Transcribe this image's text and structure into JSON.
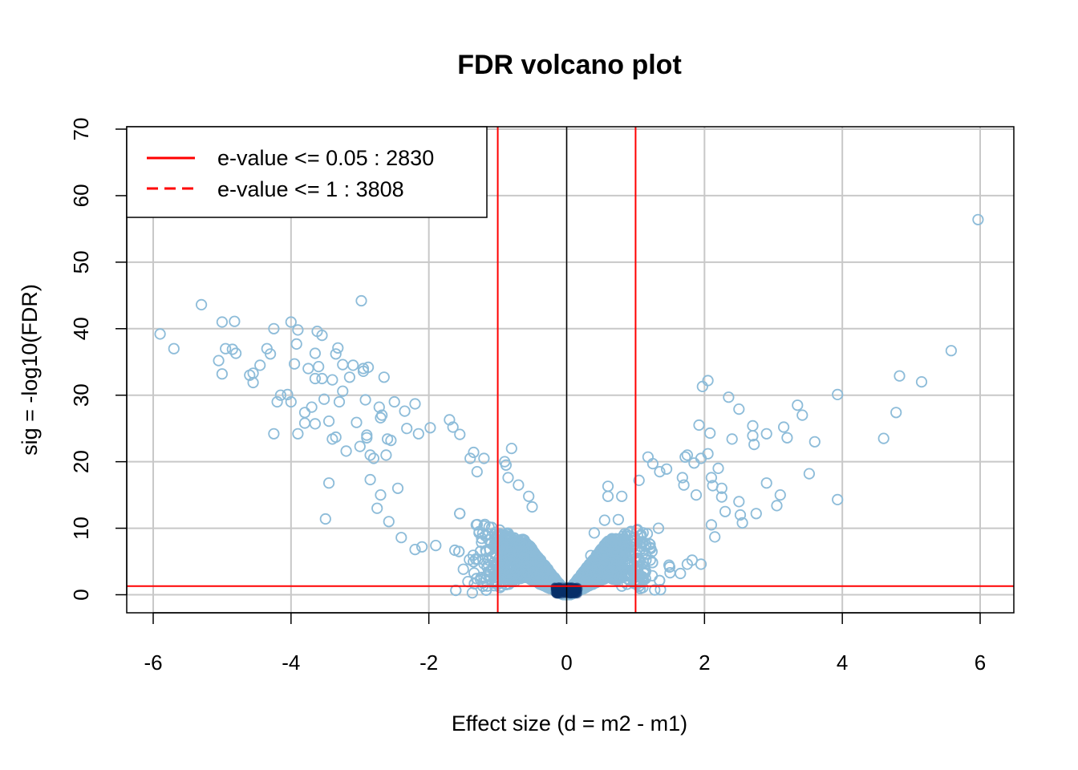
{
  "chart_data": {
    "type": "scatter",
    "title": "FDR volcano plot",
    "xlabel": "Effect size (d = m2 - m1)",
    "ylabel": "sig = -log10(FDR)",
    "xlim": [
      -6.3,
      6.5
    ],
    "ylim": [
      -2.6,
      70
    ],
    "xticks": [
      -6,
      -4,
      -2,
      0,
      2,
      4,
      6
    ],
    "yticks": [
      0,
      10,
      20,
      30,
      40,
      50,
      60,
      70
    ],
    "grid": true,
    "point_color": "#8dbcd9",
    "dense_color": "#08306b",
    "threshold_color": "#ff0000",
    "thresholds": {
      "vertical_lines": [
        -1,
        1
      ],
      "zero_line": 0,
      "horizontal_line": 1.3
    },
    "legend": {
      "position": "top-left",
      "entries": [
        {
          "label": "e-value <= 0.05 : 2830",
          "style": "solid",
          "color": "#ff0000"
        },
        {
          "label": "e-value <= 1 : 3808",
          "style": "dashed",
          "color": "#ff0000"
        }
      ]
    },
    "outlier_points": [
      [
        -5.9,
        39.2
      ],
      [
        -5.7,
        37.0
      ],
      [
        -5.3,
        43.6
      ],
      [
        -5.05,
        35.2
      ],
      [
        -5.0,
        41.0
      ],
      [
        -5.0,
        33.2
      ],
      [
        -4.95,
        37.0
      ],
      [
        -4.85,
        36.9
      ],
      [
        -4.82,
        41.1
      ],
      [
        -4.8,
        36.3
      ],
      [
        -4.6,
        33.0
      ],
      [
        -4.55,
        31.9
      ],
      [
        -4.55,
        33.3
      ],
      [
        -4.45,
        34.5
      ],
      [
        -4.35,
        37.0
      ],
      [
        -4.3,
        36.2
      ],
      [
        -4.25,
        40.0
      ],
      [
        -4.25,
        24.2
      ],
      [
        -4.2,
        29.0
      ],
      [
        -4.15,
        30.0
      ],
      [
        -4.05,
        30.1
      ],
      [
        -4.0,
        41.0
      ],
      [
        -4.0,
        29.0
      ],
      [
        -3.95,
        34.7
      ],
      [
        -3.92,
        37.7
      ],
      [
        -3.9,
        39.8
      ],
      [
        -3.9,
        24.2
      ],
      [
        -3.8,
        27.4
      ],
      [
        -3.8,
        25.8
      ],
      [
        -3.75,
        34.0
      ],
      [
        -3.7,
        28.2
      ],
      [
        -3.65,
        36.3
      ],
      [
        -3.65,
        32.5
      ],
      [
        -3.65,
        25.7
      ],
      [
        -3.62,
        39.6
      ],
      [
        -3.6,
        34.3
      ],
      [
        -3.55,
        39.0
      ],
      [
        -3.55,
        32.5
      ],
      [
        -3.52,
        29.4
      ],
      [
        -3.5,
        11.4
      ],
      [
        -3.45,
        26.1
      ],
      [
        -3.45,
        16.8
      ],
      [
        -3.4,
        32.3
      ],
      [
        -3.4,
        23.4
      ],
      [
        -3.35,
        36.2
      ],
      [
        -3.35,
        23.7
      ],
      [
        -3.32,
        37.1
      ],
      [
        -3.3,
        29.0
      ],
      [
        -3.25,
        34.6
      ],
      [
        -3.25,
        30.6
      ],
      [
        -3.2,
        21.6
      ],
      [
        -3.15,
        32.7
      ],
      [
        -3.1,
        34.5
      ],
      [
        -3.05,
        25.9
      ],
      [
        -3.0,
        22.3
      ],
      [
        -2.98,
        44.2
      ],
      [
        -2.95,
        34.0
      ],
      [
        -2.95,
        33.6
      ],
      [
        -2.92,
        29.3
      ],
      [
        -2.9,
        24.0
      ],
      [
        -2.9,
        23.6
      ],
      [
        -2.88,
        34.2
      ],
      [
        -2.85,
        21.0
      ],
      [
        -2.85,
        17.3
      ],
      [
        -2.8,
        20.5
      ],
      [
        -2.75,
        13.0
      ],
      [
        -2.72,
        28.2
      ],
      [
        -2.7,
        26.6
      ],
      [
        -2.7,
        15.0
      ],
      [
        -2.68,
        27.0
      ],
      [
        -2.65,
        32.7
      ],
      [
        -2.62,
        21.0
      ],
      [
        -2.6,
        23.4
      ],
      [
        -2.58,
        11.0
      ],
      [
        -2.55,
        23.2
      ],
      [
        -2.5,
        29.0
      ],
      [
        -2.45,
        16.0
      ],
      [
        -2.4,
        8.6
      ],
      [
        -2.35,
        27.6
      ],
      [
        -2.32,
        25.0
      ],
      [
        -2.2,
        6.8
      ],
      [
        -2.2,
        28.7
      ],
      [
        -2.15,
        24.2
      ],
      [
        -2.1,
        7.2
      ],
      [
        -1.98,
        25.1
      ],
      [
        -1.9,
        7.4
      ],
      [
        -1.7,
        26.3
      ],
      [
        -1.65,
        25.2
      ],
      [
        -1.55,
        24.1
      ],
      [
        -1.4,
        20.5
      ],
      [
        -1.35,
        21.4
      ],
      [
        -1.3,
        18.5
      ],
      [
        -1.2,
        2.5
      ],
      [
        -1.2,
        20.5
      ],
      [
        -1.15,
        1.3
      ],
      [
        -0.9,
        20.0
      ],
      [
        -0.88,
        19.5
      ],
      [
        -0.8,
        22.0
      ],
      [
        -0.85,
        17.6
      ],
      [
        -0.7,
        16.5
      ],
      [
        -0.55,
        14.8
      ],
      [
        -0.5,
        13.2
      ],
      [
        0.35,
        5.9
      ],
      [
        0.4,
        9.3
      ],
      [
        0.55,
        11.2
      ],
      [
        0.6,
        14.8
      ],
      [
        0.6,
        16.3
      ],
      [
        0.75,
        11.3
      ],
      [
        0.8,
        14.8
      ],
      [
        0.8,
        1.3
      ],
      [
        0.85,
        3.8
      ],
      [
        1.05,
        17.2
      ],
      [
        1.1,
        2.7
      ],
      [
        1.18,
        20.7
      ],
      [
        1.25,
        19.7
      ],
      [
        1.35,
        18.5
      ],
      [
        1.45,
        18.9
      ],
      [
        1.5,
        3.3
      ],
      [
        1.65,
        3.2
      ],
      [
        1.68,
        17.6
      ],
      [
        1.7,
        16.5
      ],
      [
        1.72,
        20.7
      ],
      [
        1.75,
        21.0
      ],
      [
        1.75,
        4.6
      ],
      [
        1.82,
        5.2
      ],
      [
        1.85,
        19.8
      ],
      [
        1.88,
        15.0
      ],
      [
        1.92,
        25.5
      ],
      [
        1.95,
        20.5
      ],
      [
        1.95,
        4.6
      ],
      [
        1.97,
        31.3
      ],
      [
        2.05,
        32.2
      ],
      [
        2.05,
        21.2
      ],
      [
        2.08,
        24.3
      ],
      [
        2.1,
        17.6
      ],
      [
        2.1,
        10.5
      ],
      [
        2.12,
        16.4
      ],
      [
        2.15,
        8.7
      ],
      [
        2.2,
        19.0
      ],
      [
        2.25,
        14.7
      ],
      [
        2.25,
        16.0
      ],
      [
        2.3,
        12.5
      ],
      [
        2.35,
        29.7
      ],
      [
        2.4,
        23.4
      ],
      [
        2.5,
        27.9
      ],
      [
        2.5,
        14.0
      ],
      [
        2.52,
        12.0
      ],
      [
        2.55,
        10.8
      ],
      [
        2.7,
        25.4
      ],
      [
        2.7,
        23.9
      ],
      [
        2.72,
        22.6
      ],
      [
        2.75,
        12.2
      ],
      [
        2.9,
        24.2
      ],
      [
        2.9,
        16.8
      ],
      [
        3.05,
        13.4
      ],
      [
        3.1,
        15.0
      ],
      [
        3.15,
        25.2
      ],
      [
        3.2,
        23.6
      ],
      [
        3.35,
        28.5
      ],
      [
        3.42,
        27.0
      ],
      [
        3.52,
        18.2
      ],
      [
        3.6,
        23.0
      ],
      [
        3.93,
        30.1
      ],
      [
        3.93,
        14.3
      ],
      [
        4.6,
        23.5
      ],
      [
        4.78,
        27.4
      ],
      [
        4.83,
        32.9
      ],
      [
        5.15,
        32.0
      ],
      [
        5.58,
        36.7
      ],
      [
        5.97,
        56.4
      ]
    ]
  }
}
